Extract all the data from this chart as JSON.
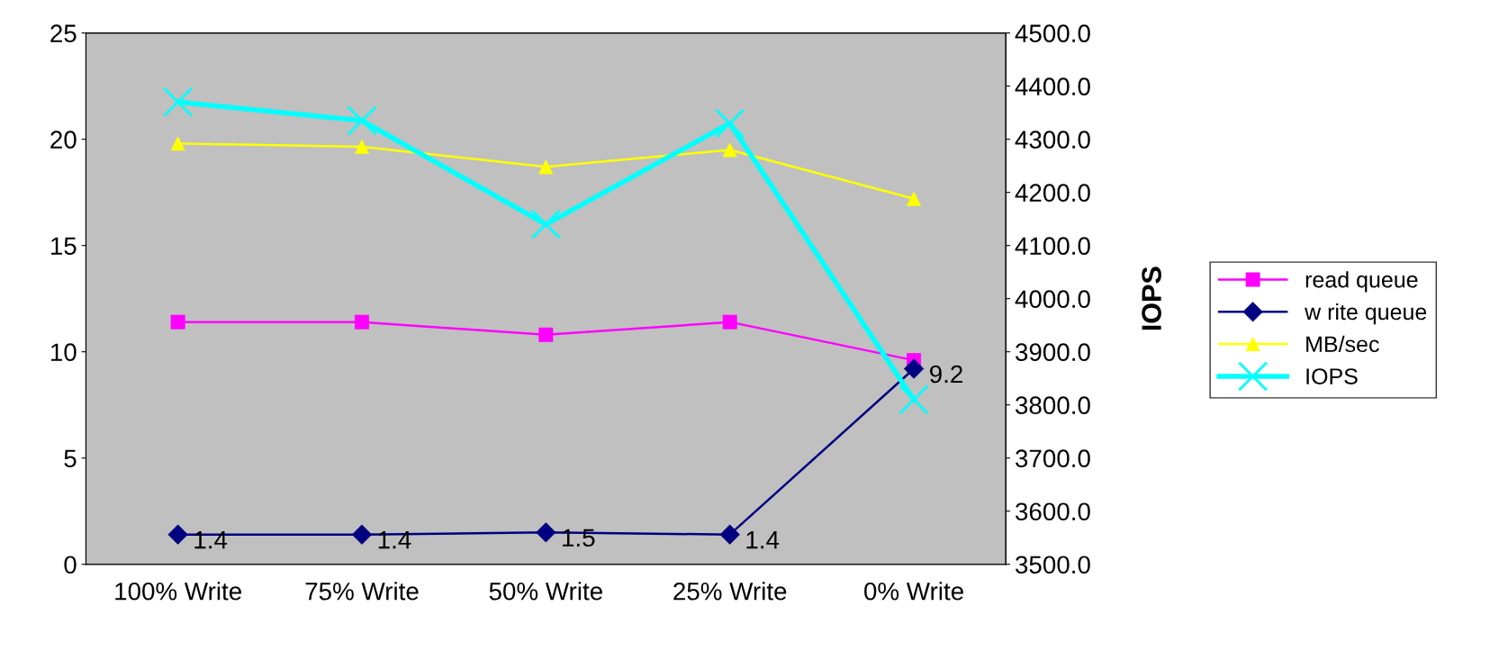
{
  "chart_data": {
    "type": "line",
    "categories": [
      "100% Write",
      "75% Write",
      "50% Write",
      "25% Write",
      "0% Write"
    ],
    "y2label": "IOPS",
    "ylim": [
      0,
      25
    ],
    "yticks": [
      0,
      5,
      10,
      15,
      20,
      25
    ],
    "y2lim": [
      3500,
      4500
    ],
    "y2ticks": [
      {
        "value": 3500,
        "label": "3500.0"
      },
      {
        "value": 3600,
        "label": "3600.0"
      },
      {
        "value": 3700,
        "label": "3700.0"
      },
      {
        "value": 3800,
        "label": "3800.0"
      },
      {
        "value": 3900,
        "label": "3900.0"
      },
      {
        "value": 4000,
        "label": "4000.0"
      },
      {
        "value": 4100,
        "label": "4100.0"
      },
      {
        "value": 4200,
        "label": "4200.0"
      },
      {
        "value": 4300,
        "label": "4300.0"
      },
      {
        "value": 4400,
        "label": "4400.0"
      },
      {
        "value": 4500,
        "label": "4500.0"
      }
    ],
    "grid": false,
    "legend": "right",
    "series": [
      {
        "name": "read queue",
        "color": "#ff00ff",
        "marker": "square",
        "values": [
          11.4,
          11.4,
          10.8,
          11.4,
          9.6
        ]
      },
      {
        "name": "w rite queue",
        "color": "#000080",
        "marker": "diamond",
        "values": [
          1.4,
          1.4,
          1.5,
          1.4,
          9.2
        ],
        "value_labels": [
          "1.4",
          "1.4",
          "1.5",
          "1.4",
          "9.2"
        ]
      },
      {
        "name": "MB/sec",
        "color": "#ffff00",
        "marker": "triangle",
        "values": [
          19.8,
          19.65,
          18.7,
          19.5,
          17.2
        ]
      },
      {
        "name": "IOPS",
        "color": "#00ffff",
        "marker": "cross",
        "axis": "y2",
        "values": [
          4370,
          4335,
          4140,
          4330,
          3810
        ]
      }
    ]
  }
}
